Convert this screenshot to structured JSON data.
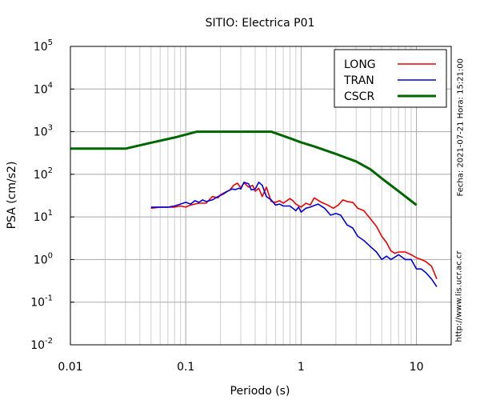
{
  "chart_data": {
    "type": "line",
    "title": "SITIO: Electrica P01",
    "xlabel": "Periodo (s)",
    "ylabel": "PSA (cm/s2)",
    "x_scale": "log",
    "y_scale": "log",
    "xlim": [
      0.01,
      20
    ],
    "ylim": [
      0.01,
      100000
    ],
    "x_ticks": [
      {
        "value": 0.01,
        "label": "0.01"
      },
      {
        "value": 0.1,
        "label": "0.1"
      },
      {
        "value": 1,
        "label": "1"
      },
      {
        "value": 10,
        "label": "10"
      }
    ],
    "y_ticks": [
      {
        "value": 0.01,
        "base": "10",
        "exp": "-2"
      },
      {
        "value": 0.1,
        "base": "10",
        "exp": "-1"
      },
      {
        "value": 1,
        "base": "10",
        "exp": "0"
      },
      {
        "value": 10,
        "base": "10",
        "exp": "1"
      },
      {
        "value": 100,
        "base": "10",
        "exp": "2"
      },
      {
        "value": 1000,
        "base": "10",
        "exp": "3"
      },
      {
        "value": 10000,
        "base": "10",
        "exp": "4"
      },
      {
        "value": 100000,
        "base": "10",
        "exp": "5"
      }
    ],
    "grid": true,
    "legend_position": "top-right",
    "series": [
      {
        "name": "LONG",
        "color": "#ee0000",
        "x": [
          0.05,
          0.06,
          0.07,
          0.08,
          0.09,
          0.1,
          0.11,
          0.12,
          0.13,
          0.15,
          0.17,
          0.19,
          0.2,
          0.22,
          0.24,
          0.26,
          0.28,
          0.3,
          0.32,
          0.35,
          0.38,
          0.4,
          0.43,
          0.46,
          0.5,
          0.55,
          0.6,
          0.65,
          0.7,
          0.8,
          0.85,
          0.9,
          1.0,
          1.1,
          1.2,
          1.3,
          1.5,
          1.7,
          1.9,
          2.1,
          2.3,
          2.5,
          2.8,
          3.1,
          3.5,
          4.0,
          4.5,
          5.0,
          5.5,
          6.0,
          6.5,
          7.0,
          8.0,
          9.0,
          10.0,
          11.0,
          12.0,
          13.5,
          15.0
        ],
        "y": [
          16,
          17,
          17,
          17,
          18,
          17,
          19,
          20,
          21,
          21,
          30,
          28,
          33,
          38,
          42,
          55,
          62,
          48,
          63,
          50,
          55,
          40,
          47,
          30,
          50,
          23,
          22,
          24,
          21,
          27,
          24,
          20,
          17,
          21,
          19,
          28,
          22,
          19,
          16,
          19,
          25,
          23,
          22,
          16,
          14,
          9,
          6,
          3.5,
          2.5,
          1.6,
          1.4,
          1.5,
          1.5,
          1.3,
          1.1,
          1.0,
          0.9,
          0.7,
          0.35
        ]
      },
      {
        "name": "TRAN",
        "color": "#0000dd",
        "x": [
          0.05,
          0.06,
          0.07,
          0.08,
          0.09,
          0.1,
          0.11,
          0.12,
          0.13,
          0.14,
          0.15,
          0.17,
          0.19,
          0.21,
          0.23,
          0.25,
          0.27,
          0.29,
          0.3,
          0.32,
          0.35,
          0.37,
          0.4,
          0.43,
          0.46,
          0.5,
          0.55,
          0.6,
          0.65,
          0.7,
          0.8,
          0.9,
          0.95,
          1.0,
          1.1,
          1.2,
          1.4,
          1.6,
          1.8,
          2.0,
          2.2,
          2.5,
          2.8,
          3.1,
          3.5,
          4.0,
          4.5,
          5.0,
          5.5,
          6.0,
          7.0,
          8.0,
          9.0,
          10.0,
          11.0,
          12.0,
          13.5,
          15.0
        ],
        "y": [
          17,
          17,
          17,
          18,
          20,
          22,
          20,
          24,
          22,
          25,
          23,
          25,
          30,
          34,
          40,
          45,
          44,
          47,
          45,
          65,
          60,
          43,
          45,
          65,
          55,
          30,
          25,
          19,
          20,
          18,
          18,
          14,
          17,
          13,
          16,
          17,
          20,
          16,
          11,
          12,
          11,
          6.5,
          5.5,
          3.5,
          2.8,
          2.0,
          1.5,
          1.0,
          1.2,
          1.0,
          1.3,
          1.0,
          1.0,
          0.6,
          0.6,
          0.5,
          0.35,
          0.23
        ]
      },
      {
        "name": "CSCR",
        "color": "#006600",
        "x": [
          0.01,
          0.03,
          0.05,
          0.08,
          0.125,
          0.2,
          0.3,
          0.55,
          0.8,
          1.0,
          1.3,
          1.6,
          2.0,
          2.5,
          3.0,
          4.0,
          5.0,
          7.0,
          10.0
        ],
        "y": [
          400,
          400,
          550,
          730,
          1000,
          1000,
          1000,
          1000,
          700,
          560,
          450,
          370,
          300,
          240,
          200,
          130,
          80,
          40,
          19
        ]
      }
    ]
  },
  "side_texts": {
    "fecha": "Fecha: 2021-07-21 Hora: 15:21:00",
    "url": "http://www.lis.ucr.ac.cr"
  }
}
